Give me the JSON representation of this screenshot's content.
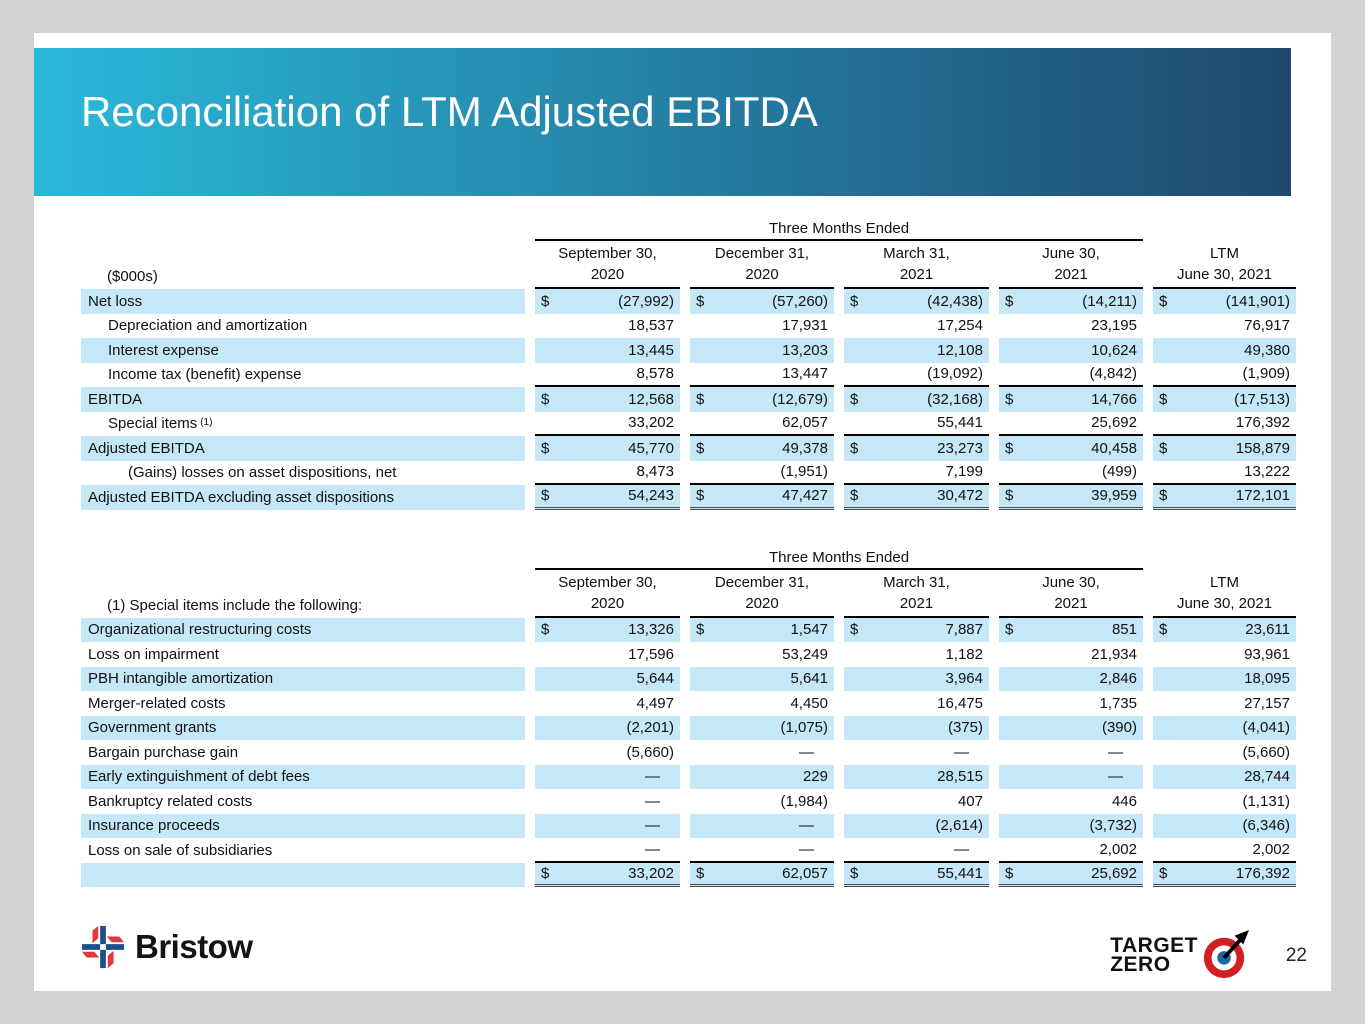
{
  "slide": {
    "title": "Reconciliation of LTM Adjusted EBITDA",
    "page_number": "22"
  },
  "colors": {
    "banner_gradient_left": "#2ab9da",
    "banner_gradient_right": "#1f486f",
    "row_highlight": "#c5e8f8",
    "canvas_background": "#d2d2d2",
    "slide_background": "#ffffff"
  },
  "tables": [
    {
      "corner_label": "($000s)",
      "span_header": "Three Months Ended",
      "columns": [
        {
          "line1": "September 30,",
          "line2": "2020"
        },
        {
          "line1": "December 31,",
          "line2": "2020"
        },
        {
          "line1": "March 31,",
          "line2": "2021"
        },
        {
          "line1": "June 30,",
          "line2": "2021"
        },
        {
          "line1": "LTM",
          "line2": "June 30, 2021"
        }
      ],
      "rows": [
        {
          "label": "Net loss",
          "sup": "",
          "indent": 0,
          "dollar": "$",
          "highlight": true,
          "underline": "",
          "values": [
            "(27,992)",
            "(57,260)",
            "(42,438)",
            "(14,211)",
            "(141,901)"
          ]
        },
        {
          "label": "Depreciation and amortization",
          "sup": "",
          "indent": 1,
          "dollar": "",
          "highlight": false,
          "underline": "",
          "values": [
            "18,537",
            "17,931",
            "17,254",
            "23,195",
            "76,917"
          ]
        },
        {
          "label": "Interest expense",
          "sup": "",
          "indent": 1,
          "dollar": "",
          "highlight": true,
          "underline": "",
          "values": [
            "13,445",
            "13,203",
            "12,108",
            "10,624",
            "49,380"
          ]
        },
        {
          "label": "Income tax (benefit) expense",
          "sup": "",
          "indent": 1,
          "dollar": "",
          "highlight": false,
          "underline": "single",
          "values": [
            "8,578",
            "13,447",
            "(19,092)",
            "(4,842)",
            "(1,909)"
          ]
        },
        {
          "label": "EBITDA",
          "sup": "",
          "indent": 0,
          "dollar": "$",
          "highlight": true,
          "underline": "",
          "values": [
            "12,568",
            "(12,679)",
            "(32,168)",
            "14,766",
            "(17,513)"
          ]
        },
        {
          "label": "Special items",
          "sup": "(1)",
          "indent": 1,
          "dollar": "",
          "highlight": false,
          "underline": "single",
          "values": [
            "33,202",
            "62,057",
            "55,441",
            "25,692",
            "176,392"
          ]
        },
        {
          "label": "Adjusted EBITDA",
          "sup": "",
          "indent": 0,
          "dollar": "$",
          "highlight": true,
          "underline": "",
          "values": [
            "45,770",
            "49,378",
            "23,273",
            "40,458",
            "158,879"
          ]
        },
        {
          "label": "(Gains) losses on asset dispositions, net",
          "sup": "",
          "indent": 2,
          "dollar": "",
          "highlight": false,
          "underline": "single",
          "values": [
            "8,473",
            "(1,951)",
            "7,199",
            "(499)",
            "13,222"
          ]
        },
        {
          "label": "Adjusted EBITDA excluding asset dispositions",
          "sup": "",
          "indent": 0,
          "dollar": "$",
          "highlight": true,
          "underline": "double",
          "values": [
            "54,243",
            "47,427",
            "30,472",
            "39,959",
            "172,101"
          ]
        }
      ]
    },
    {
      "corner_label": "(1) Special items include the following:",
      "span_header": "Three Months Ended",
      "columns": [
        {
          "line1": "September 30,",
          "line2": "2020"
        },
        {
          "line1": "December 31,",
          "line2": "2020"
        },
        {
          "line1": "March 31,",
          "line2": "2021"
        },
        {
          "line1": "June 30,",
          "line2": "2021"
        },
        {
          "line1": "LTM",
          "line2": "June 30, 2021"
        }
      ],
      "rows": [
        {
          "label": "Organizational restructuring costs",
          "sup": "",
          "indent": 0,
          "dollar": "$",
          "highlight": true,
          "underline": "",
          "values": [
            "13,326",
            "1,547",
            "7,887",
            "851",
            "23,611"
          ]
        },
        {
          "label": "Loss on impairment",
          "sup": "",
          "indent": 0,
          "dollar": "",
          "highlight": false,
          "underline": "",
          "values": [
            "17,596",
            "53,249",
            "1,182",
            "21,934",
            "93,961"
          ]
        },
        {
          "label": "PBH intangible amortization",
          "sup": "",
          "indent": 0,
          "dollar": "",
          "highlight": true,
          "underline": "",
          "values": [
            "5,644",
            "5,641",
            "3,964",
            "2,846",
            "18,095"
          ]
        },
        {
          "label": "Merger-related costs",
          "sup": "",
          "indent": 0,
          "dollar": "",
          "highlight": false,
          "underline": "",
          "values": [
            "4,497",
            "4,450",
            "16,475",
            "1,735",
            "27,157"
          ]
        },
        {
          "label": "Government grants",
          "sup": "",
          "indent": 0,
          "dollar": "",
          "highlight": true,
          "underline": "",
          "values": [
            "(2,201)",
            "(1,075)",
            "(375)",
            "(390)",
            "(4,041)"
          ]
        },
        {
          "label": "Bargain purchase gain",
          "sup": "",
          "indent": 0,
          "dollar": "",
          "highlight": false,
          "underline": "",
          "values": [
            "(5,660)",
            "—",
            "—",
            "—",
            "(5,660)"
          ]
        },
        {
          "label": "Early extinguishment of debt fees",
          "sup": "",
          "indent": 0,
          "dollar": "",
          "highlight": true,
          "underline": "",
          "values": [
            "—",
            "229",
            "28,515",
            "—",
            "28,744"
          ]
        },
        {
          "label": "Bankruptcy related costs",
          "sup": "",
          "indent": 0,
          "dollar": "",
          "highlight": false,
          "underline": "",
          "values": [
            "—",
            "(1,984)",
            "407",
            "446",
            "(1,131)"
          ]
        },
        {
          "label": "Insurance proceeds",
          "sup": "",
          "indent": 0,
          "dollar": "",
          "highlight": true,
          "underline": "",
          "values": [
            "—",
            "—",
            "(2,614)",
            "(3,732)",
            "(6,346)"
          ]
        },
        {
          "label": "Loss on sale of subsidiaries",
          "sup": "",
          "indent": 0,
          "dollar": "",
          "highlight": false,
          "underline": "single",
          "values": [
            "—",
            "—",
            "—",
            "2,002",
            "2,002"
          ]
        },
        {
          "label": "",
          "sup": "",
          "indent": 0,
          "dollar": "$",
          "highlight": true,
          "underline": "double",
          "values": [
            "33,202",
            "62,057",
            "55,441",
            "25,692",
            "176,392"
          ]
        }
      ]
    }
  ],
  "footer": {
    "brand_name": "Bristow",
    "target_zero_line1": "TARGET",
    "target_zero_line2": "ZERO"
  }
}
